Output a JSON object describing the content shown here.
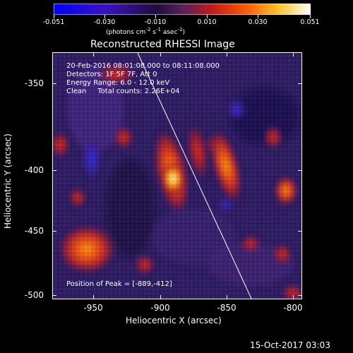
{
  "colorbar": {
    "ticks": [
      "-0.051",
      "-0.030",
      "-0.010",
      "0.010",
      "0.030",
      "0.051"
    ],
    "units": "(photons cm",
    "units_exp1": "-2",
    "units_mid1": " s",
    "units_exp2": "-1",
    "units_mid2": " asec",
    "units_exp3": "-2",
    "units_end": ")",
    "colors": [
      "#0000ff",
      "#3010c8",
      "#1b0f4d",
      "#5a1f5c",
      "#c81e14",
      "#ff7800",
      "#ffe84a",
      "#ffffff"
    ]
  },
  "title": "Reconstructed RHESSI Image",
  "annotations": {
    "line1": "20-Feb-2016 08:01:08.000 to 08:11:08.000",
    "line2": "Detectors: 1F 5F 7F, Att 0",
    "line3": "Energy Range: 6.0 - 12.0 keV",
    "line4": "Clean     Total counts: 2.26E+04",
    "peak": "Position of Peak = [-889,-412]"
  },
  "axes": {
    "xlabel": "Heliocentric X (arcsec)",
    "ylabel": "Heliocentric Y (arcsec)",
    "xticks": [
      "-950",
      "-900",
      "-850",
      "-800"
    ],
    "yticks": [
      "-350",
      "-400",
      "-450",
      "-500"
    ],
    "xlim": [
      -982,
      -793
    ],
    "ylim": [
      -502,
      -315
    ]
  },
  "footer": "15-Oct-2017 03:03",
  "image": {
    "peak_x": -889,
    "peak_y": -412
  }
}
